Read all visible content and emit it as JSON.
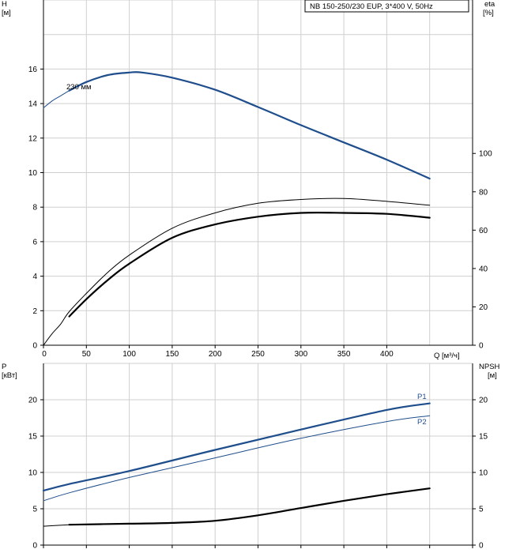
{
  "chart_data": [
    {
      "type": "line",
      "panel": "head-efficiency",
      "title": "NB 150-250/230 EUP, 3*400 V, 50Hz",
      "xlabel": "Q [м³/ч]",
      "xlim": [
        0,
        500
      ],
      "xticks": [
        0,
        50,
        100,
        150,
        200,
        250,
        300,
        350,
        400
      ],
      "ylabel_left": "H [м]",
      "ylim_left": [
        0,
        20
      ],
      "yticks_left": [
        0,
        2,
        4,
        6,
        8,
        10,
        12,
        14,
        16
      ],
      "ylabel_right": "eta [%]",
      "ylim_right": [
        0,
        180
      ],
      "yticks_right": [
        0,
        20,
        40,
        60,
        80,
        100
      ],
      "grid": true,
      "annotations": [
        {
          "text": "230 мм",
          "x": 22,
          "y": 14.8
        }
      ],
      "series": [
        {
          "name": "230 мм",
          "axis": "left",
          "color": "#1f4e8c",
          "style": "thin",
          "x": [
            0,
            10,
            20,
            30
          ],
          "y": [
            13.75,
            14.15,
            14.45,
            14.75
          ]
        },
        {
          "name": "230 мм",
          "axis": "left",
          "color": "#1f4e8c",
          "style": "thick",
          "x": [
            30,
            50,
            75,
            100,
            115,
            150,
            200,
            250,
            300,
            350,
            400,
            450
          ],
          "y": [
            14.75,
            15.25,
            15.65,
            15.8,
            15.8,
            15.5,
            14.8,
            13.8,
            12.75,
            11.75,
            10.75,
            9.65
          ]
        },
        {
          "name": "",
          "axis": "right",
          "color": "#000000",
          "style": "thin",
          "x": [
            0,
            10,
            20,
            30,
            50,
            75,
            100,
            150,
            200,
            250,
            300,
            350,
            400,
            450
          ],
          "y": [
            0,
            6,
            11,
            17.5,
            27,
            38,
            47,
            61,
            69,
            74,
            76,
            76.5,
            75,
            73
          ]
        },
        {
          "name": "",
          "axis": "right",
          "color": "#000000",
          "style": "thick",
          "x": [
            30,
            50,
            75,
            100,
            150,
            200,
            250,
            300,
            350,
            400,
            450
          ],
          "y": [
            15,
            24,
            34,
            42.5,
            56,
            63,
            67,
            69,
            69,
            68.5,
            66.5
          ]
        }
      ]
    },
    {
      "type": "line",
      "panel": "power-npsh",
      "ylabel_left": "P [кВт]",
      "ylim_left": [
        0,
        25
      ],
      "yticks_left": [
        0,
        5,
        10,
        15,
        20
      ],
      "ylabel_right": "NPSH [м]",
      "ylim_right": [
        0,
        25
      ],
      "yticks_right": [
        0,
        5,
        10,
        15,
        20
      ],
      "xlim": [
        0,
        500
      ],
      "grid": true,
      "series": [
        {
          "name": "P1",
          "axis": "left",
          "color": "#1f4e8c",
          "style": "thick",
          "x": [
            0,
            30,
            100,
            200,
            300,
            400,
            450
          ],
          "y": [
            7.5,
            8.4,
            10.2,
            13.1,
            15.9,
            18.6,
            19.5
          ]
        },
        {
          "name": "P2",
          "axis": "left",
          "color": "#1f4e8c",
          "style": "thin",
          "x": [
            0,
            30,
            100,
            200,
            300,
            400,
            450
          ],
          "y": [
            6.1,
            7.2,
            9.3,
            12.0,
            14.7,
            17.0,
            17.8
          ]
        },
        {
          "name": "",
          "axis": "right",
          "color": "#000000",
          "style": "thin",
          "x": [
            0,
            30
          ],
          "y": [
            2.6,
            2.8
          ]
        },
        {
          "name": "",
          "axis": "right",
          "color": "#000000",
          "style": "thick",
          "x": [
            30,
            100,
            150,
            200,
            250,
            300,
            350,
            400,
            450
          ],
          "y": [
            2.8,
            2.95,
            3.05,
            3.35,
            4.1,
            5.1,
            6.1,
            7.0,
            7.8
          ]
        }
      ]
    }
  ]
}
